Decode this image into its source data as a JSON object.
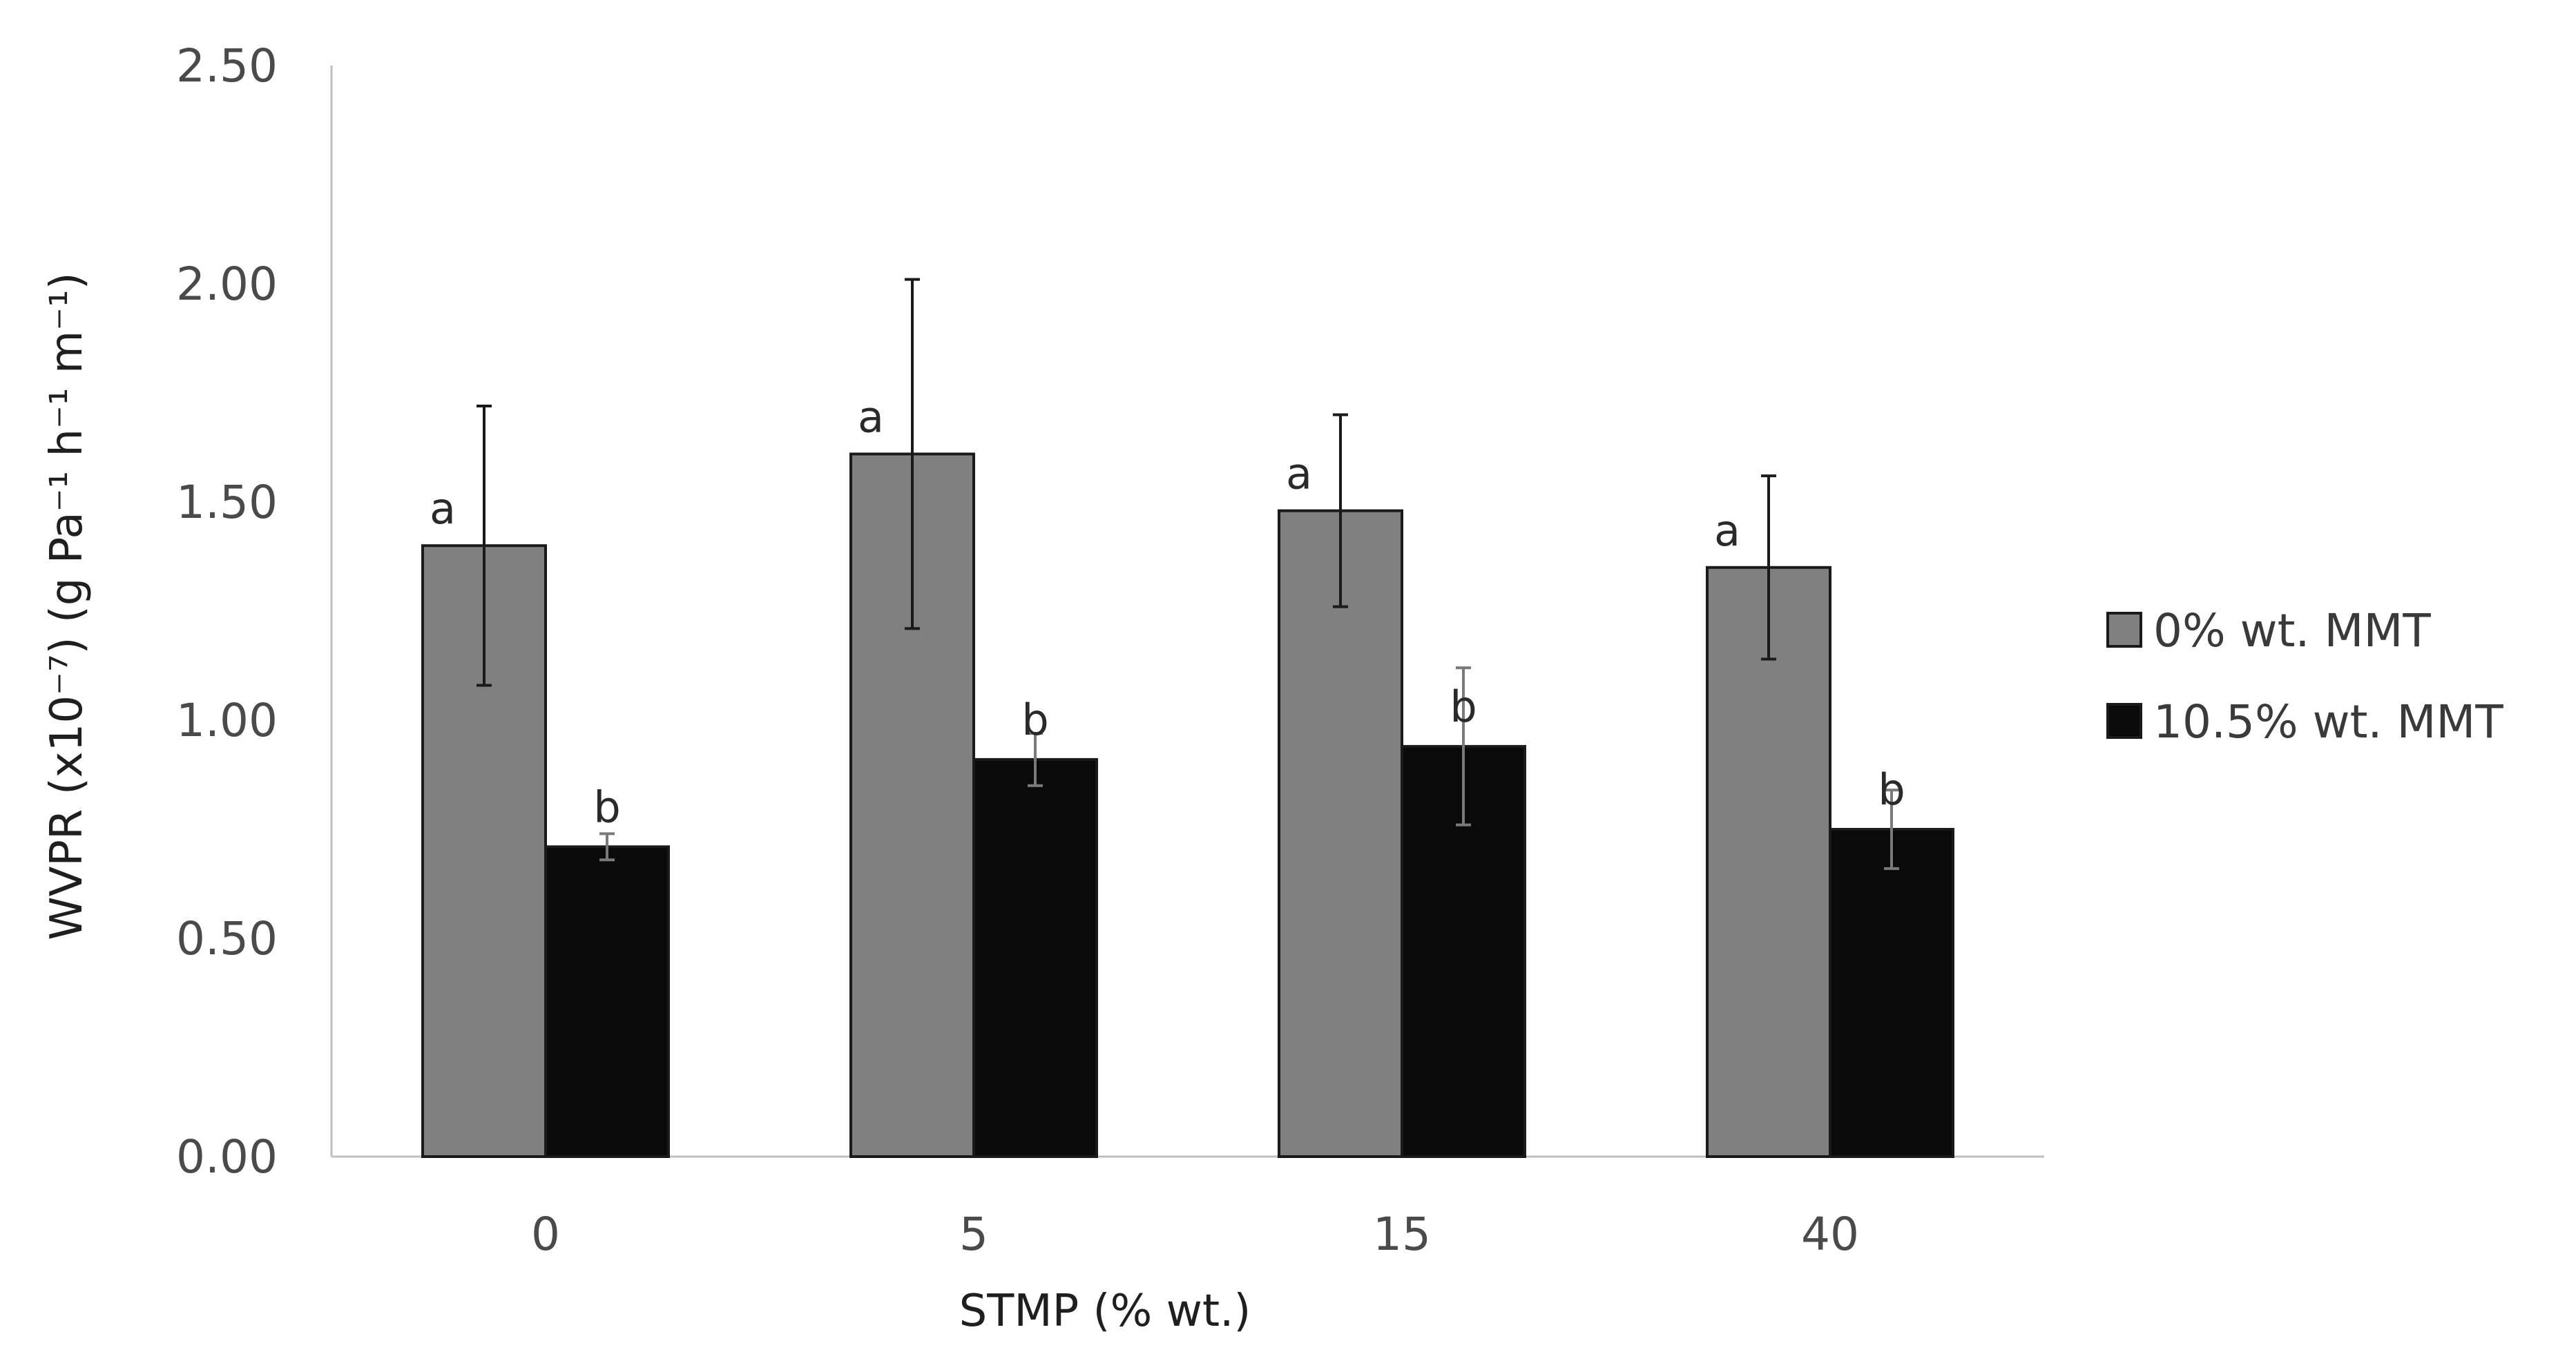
{
  "chart_data": {
    "type": "bar",
    "title": "",
    "xlabel": "STMP (% wt.)",
    "ylabel": "WVPR (x10⁻⁷) (g Pa⁻¹ h⁻¹ m⁻¹)",
    "categories": [
      "0",
      "5",
      "15",
      "40"
    ],
    "ylim": [
      0,
      2.5
    ],
    "yticks": [
      "0.00",
      "0.50",
      "1.00",
      "1.50",
      "2.00",
      "2.50"
    ],
    "grid": false,
    "legend_position": "right",
    "series": [
      {
        "name": "0% wt. MMT",
        "color": "#808080",
        "values": [
          1.4,
          1.61,
          1.48,
          1.35
        ],
        "errors": [
          0.32,
          0.4,
          0.22,
          0.21
        ],
        "labels": [
          "a",
          "a",
          "a",
          "a"
        ]
      },
      {
        "name": "10.5% wt. MMT",
        "color": "#0a0a0a",
        "values": [
          0.71,
          0.91,
          0.94,
          0.75
        ],
        "errors": [
          0.03,
          0.06,
          0.18,
          0.09
        ],
        "labels": [
          "b",
          "b",
          "b",
          "b"
        ]
      }
    ]
  }
}
